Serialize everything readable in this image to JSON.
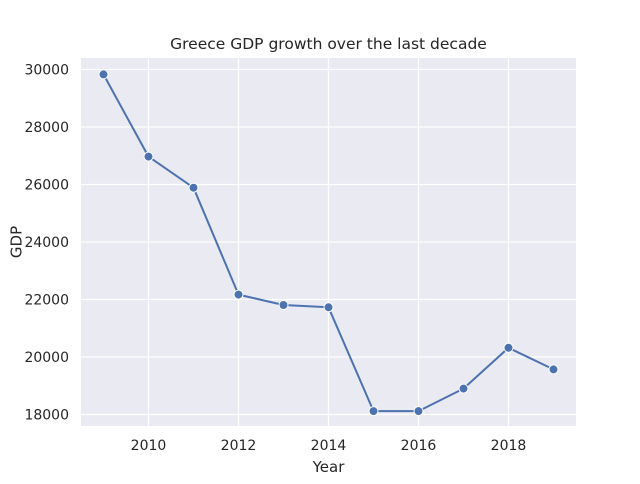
{
  "chart_data": {
    "type": "line",
    "title": "Greece GDP growth over the last decade",
    "xlabel": "Year",
    "ylabel": "GDP",
    "x": [
      2009,
      2010,
      2011,
      2012,
      2013,
      2014,
      2015,
      2016,
      2017,
      2018,
      2019
    ],
    "series": [
      {
        "name": "",
        "values": [
          29830,
          26970,
          25890,
          22170,
          21810,
          21730,
          18120,
          18120,
          18900,
          20320,
          19570
        ]
      }
    ],
    "xlim": [
      2008.5,
      2019.5
    ],
    "ylim": [
      17600,
      30400
    ],
    "xticks": [
      "2010",
      "2012",
      "2014",
      "2016",
      "2018"
    ],
    "yticks": [
      "18000",
      "20000",
      "22000",
      "24000",
      "26000",
      "28000",
      "30000"
    ],
    "grid": true,
    "style": {
      "background": "#eaeaf2",
      "grid_color": "#ffffff",
      "line_color": "#4c72b0",
      "marker_color": "#4c72b0",
      "marker_edge": "#ffffff"
    }
  }
}
